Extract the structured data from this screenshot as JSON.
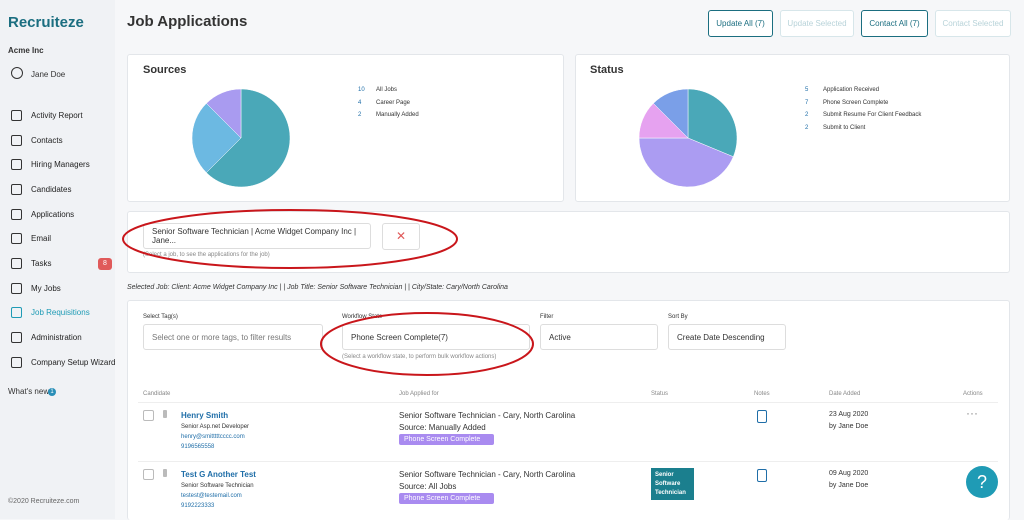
{
  "sidebar": {
    "logo": "Recruiteze",
    "company": "Acme Inc",
    "user": "Jane Doe",
    "nav": [
      "Activity Report",
      "Contacts",
      "Hiring Managers",
      "Candidates",
      "Applications",
      "Email",
      "Tasks",
      "My Jobs",
      "Job Requisitions",
      "Administration",
      "Company Setup Wizard"
    ],
    "tasks_badge": 8,
    "whats_new": "What's new",
    "whats_new_badge": 1,
    "footer": "©2020 Recruiteze.com"
  },
  "header": {
    "title": "Job Applications",
    "buttons": [
      "Update All (7)",
      "Update Selected",
      "Contact All (7)",
      "Contact Selected"
    ]
  },
  "sources_chart": {
    "type": "pie",
    "title": "Sources",
    "categories": [
      "All Jobs",
      "Career Page",
      "Manually Added"
    ],
    "values": [
      10,
      4,
      2
    ],
    "colors": [
      "#4aa8b8",
      "#6cb9e2",
      "#a99bf0"
    ]
  },
  "status_chart": {
    "type": "pie",
    "title": "Status",
    "categories": [
      "Application Received",
      "Phone Screen Complete",
      "Submit Resume For Client Feedback",
      "Submit to Client"
    ],
    "values": [
      5,
      7,
      2,
      2
    ],
    "colors": [
      "#4aa8b8",
      "#ab9cf2",
      "#e6a2f0",
      "#7a9fe8"
    ]
  },
  "job_select": {
    "value": "Senior Software Technician | Acme Widget Company Inc | Jane...",
    "help": "(Select a job, to see the applications for the job)"
  },
  "selected_job": "Selected Job: Client: Acme Widget Company Inc | | Job Title: Senior Software Technician | | City/State: Cary/North Carolina",
  "filters": [
    {
      "label": "Select Tag(s)",
      "placeholder": "Select one or more tags, to filter results"
    },
    {
      "label": "Workflow State",
      "value": "Phone Screen Complete(7)",
      "help": "(Select a workflow state, to perform bulk workflow actions)"
    },
    {
      "label": "Filter",
      "value": "Active"
    },
    {
      "label": "Sort By",
      "value": "Create Date Descending"
    }
  ],
  "table": {
    "headers": [
      "Candidate",
      "Job Applied for",
      "Status",
      "Notes",
      "Date Added",
      "Actions"
    ],
    "rows": [
      {
        "name": "Henry Smith",
        "title": "Senior Asp.net Developer",
        "email": "henry@smitttttcccc.com",
        "phone": "9196565558",
        "job": "Senior Software Technician - Cary, North Carolina",
        "source": "Source: Manually Added",
        "tag": "Phone Screen Complete",
        "date": "23 Aug 2020",
        "by": "by Jane Doe"
      },
      {
        "name": "Test G Another Test",
        "title": "Senior Software Technician",
        "email": "testest@testemail.com",
        "phone": "9192223333",
        "job": "Senior Software Technician - Cary, North Carolina",
        "source": "Source: All Jobs",
        "tag": "Phone Screen Complete",
        "status": "Senior Software Technician",
        "date": "09 Aug 2020",
        "by": "by Jane Doe"
      }
    ]
  },
  "help_button": "?"
}
